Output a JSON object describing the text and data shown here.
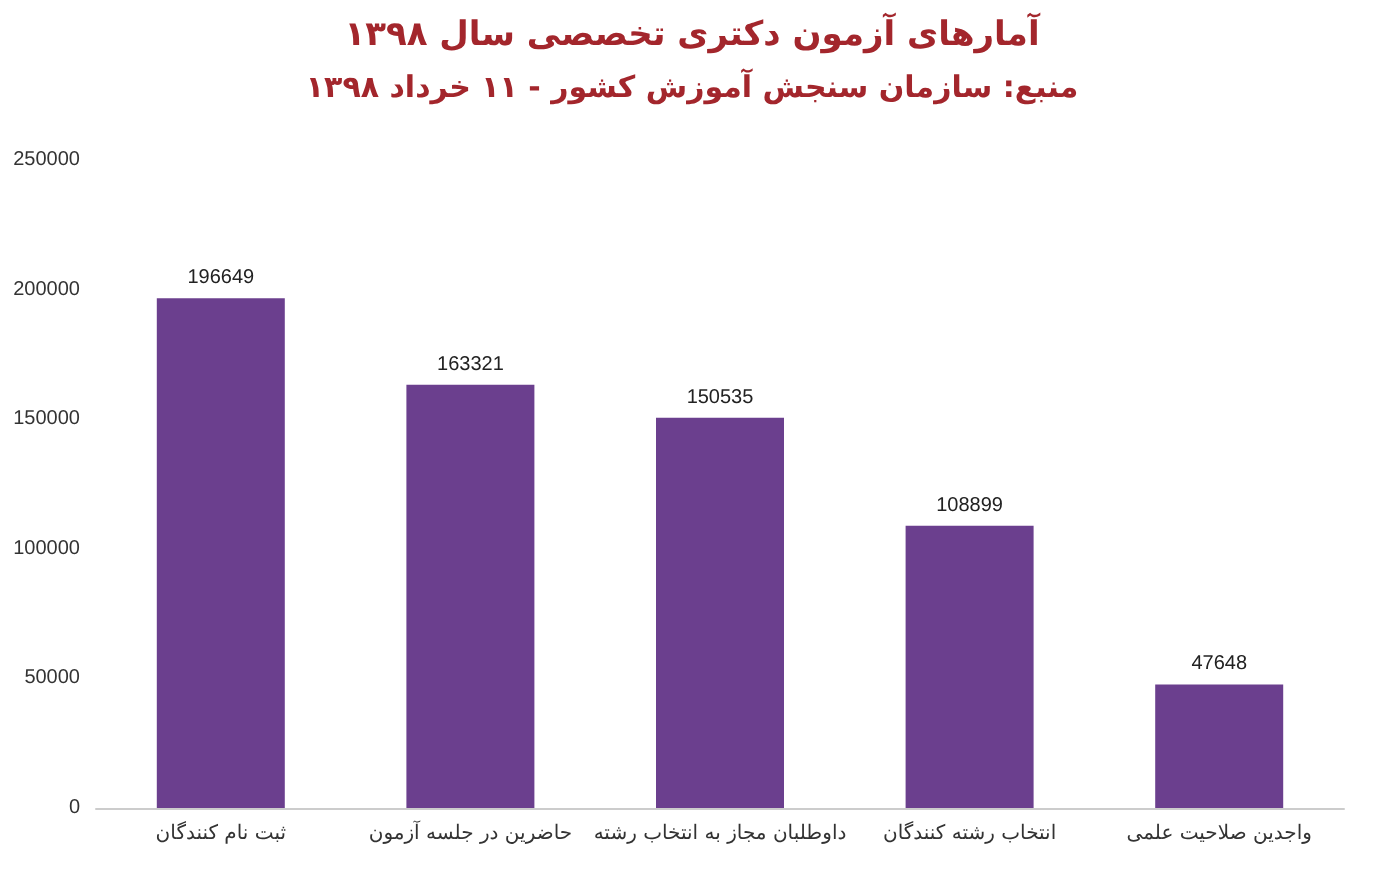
{
  "chart_data": {
    "type": "bar",
    "title": "آمارهای آزمون دکتری تخصصی سال ۱۳۹۸",
    "subtitle": "منبع: سازمان سنجش آموزش کشور - ۱۱ خرداد ۱۳۹۸",
    "categories": [
      "ثبت نام کنندگان",
      "حاضرین در جلسه آزمون",
      "داوطلبان مجاز به انتخاب رشته",
      "انتخاب رشته کنندگان",
      "واجدین صلاحیت علمی"
    ],
    "values": [
      196649,
      163321,
      150535,
      108899,
      47648
    ],
    "color": "#6b3f8e",
    "ylim": [
      0,
      250000
    ],
    "yticks": [
      0,
      50000,
      100000,
      150000,
      200000,
      250000
    ],
    "data_labels": true
  }
}
